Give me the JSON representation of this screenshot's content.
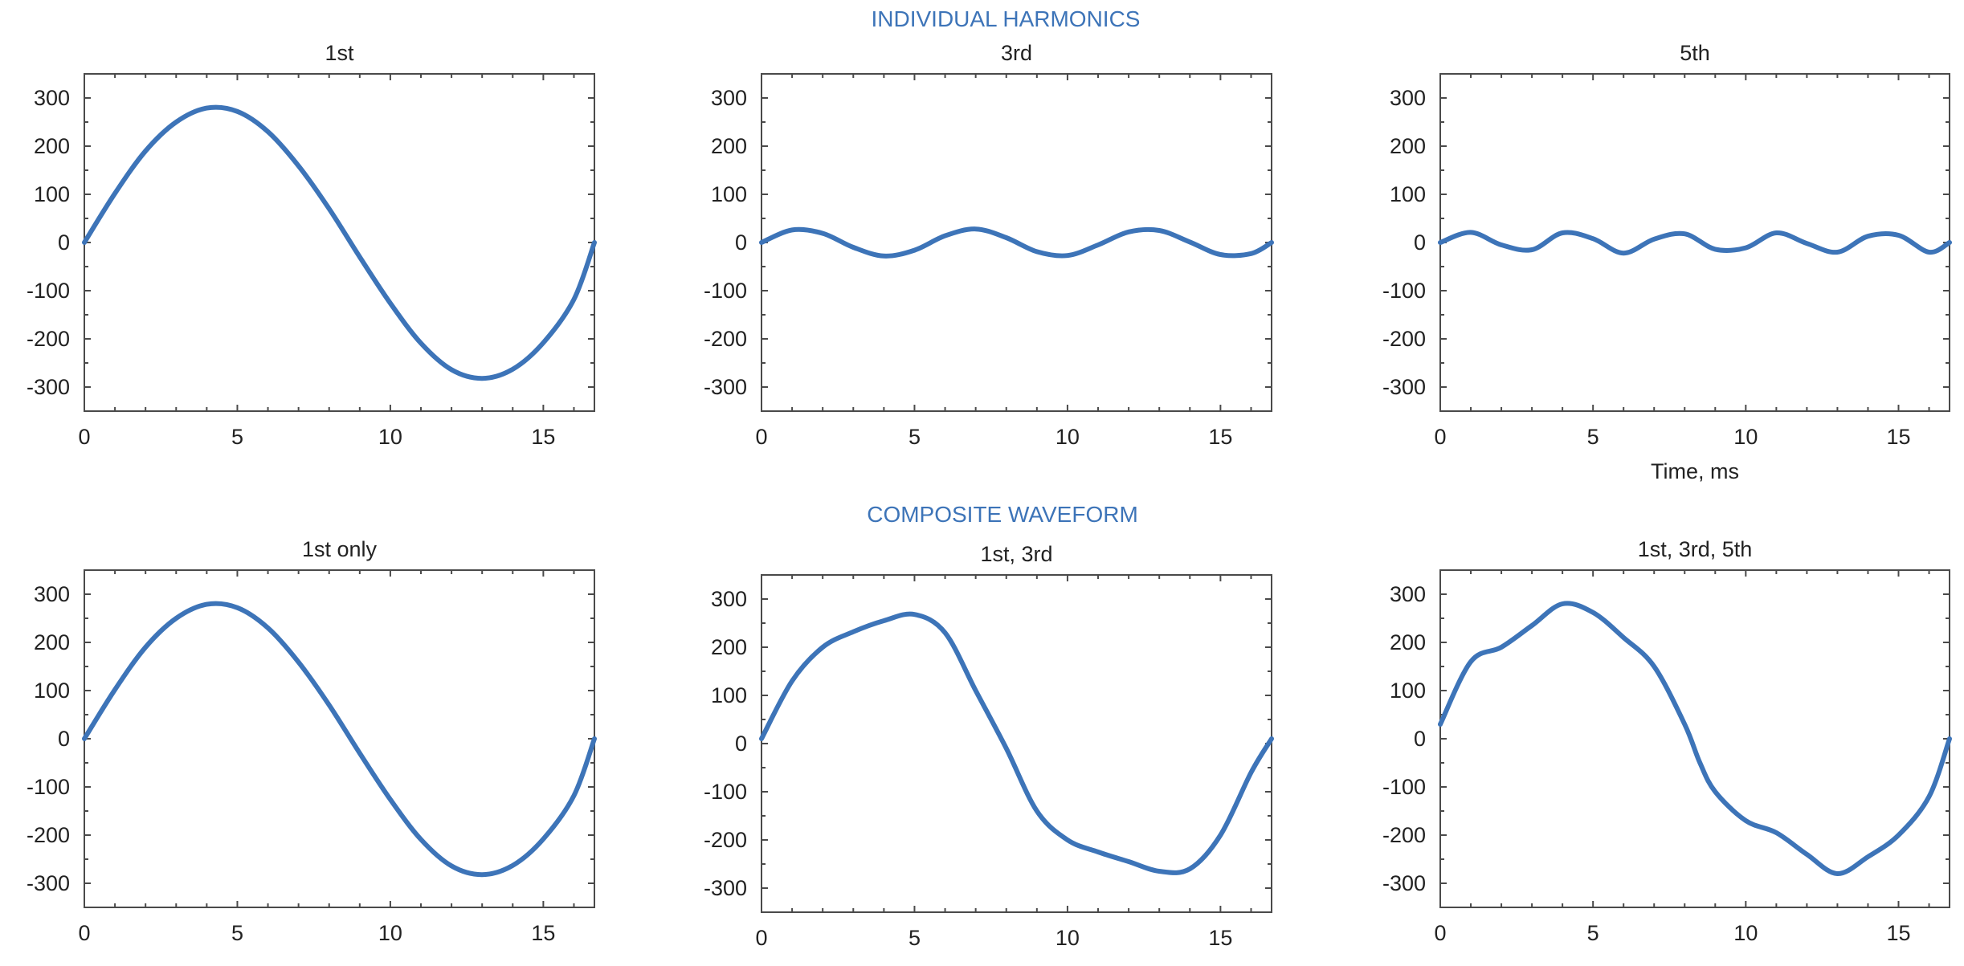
{
  "figure": {
    "top_title": "INDIVIDUAL HARMONICS",
    "bottom_title": "COMPOSITE WAVEFORM"
  },
  "colors": {
    "series": "#3d74b8",
    "section_title": "#3d74b8",
    "frame": "#4a4a4a",
    "text": "#222222"
  },
  "chart_data": [
    {
      "type": "line",
      "title": "1st",
      "xlabel": "",
      "ylabel": "",
      "xlim": [
        0,
        16.67
      ],
      "ylim": [
        -350,
        350
      ],
      "xticks": [
        0,
        5,
        10,
        15
      ],
      "yticks": [
        300,
        200,
        100,
        0,
        -100,
        -200,
        -300
      ],
      "grid": false,
      "legend": "none",
      "series": [
        {
          "x": [
            0,
            1,
            2,
            3,
            4,
            5,
            6,
            7,
            8,
            9,
            10,
            11,
            12,
            13,
            14,
            15,
            16,
            16.67
          ],
          "values": [
            0,
            102,
            190,
            250,
            279,
            272,
            230,
            159,
            70,
            -30,
            -126,
            -209,
            -264,
            -282,
            -263,
            -208,
            -118,
            0
          ]
        }
      ]
    },
    {
      "type": "line",
      "title": "3rd",
      "xlabel": "",
      "ylabel": "",
      "xlim": [
        0,
        16.67
      ],
      "ylim": [
        -350,
        350
      ],
      "xticks": [
        0,
        5,
        10,
        15
      ],
      "yticks": [
        300,
        200,
        100,
        0,
        -100,
        -200,
        -300
      ],
      "grid": false,
      "legend": "none",
      "series": [
        {
          "x": [
            0,
            1,
            2,
            3,
            4,
            5,
            6,
            7,
            8,
            9,
            10,
            11,
            12,
            13,
            14,
            15,
            16,
            16.67
          ],
          "values": [
            0,
            26,
            19,
            -10,
            -28,
            -16,
            14,
            28,
            10,
            -19,
            -27,
            -5,
            22,
            25,
            1,
            -25,
            -23,
            0
          ]
        }
      ]
    },
    {
      "type": "line",
      "title": "5th",
      "xlabel": "Time, ms",
      "ylabel": "",
      "xlim": [
        0,
        16.67
      ],
      "ylim": [
        -350,
        350
      ],
      "xticks": [
        0,
        5,
        10,
        15
      ],
      "yticks": [
        300,
        200,
        100,
        0,
        -100,
        -200,
        -300
      ],
      "grid": false,
      "legend": "none",
      "series": [
        {
          "x": [
            0,
            1,
            2,
            3,
            4,
            5,
            6,
            7,
            8,
            9,
            10,
            11,
            12,
            13,
            14,
            15,
            16,
            16.67
          ],
          "values": [
            0,
            21,
            -5,
            -15,
            20,
            8,
            -22,
            7,
            18,
            -14,
            -11,
            20,
            -2,
            -20,
            13,
            15,
            -20,
            0
          ]
        }
      ]
    },
    {
      "type": "line",
      "title": "1st only",
      "xlabel": "",
      "ylabel": "",
      "xlim": [
        0,
        16.67
      ],
      "ylim": [
        -350,
        350
      ],
      "xticks": [
        0,
        5,
        10,
        15
      ],
      "yticks": [
        300,
        200,
        100,
        0,
        -100,
        -200,
        -300
      ],
      "grid": false,
      "legend": "none",
      "series": [
        {
          "x": [
            0,
            1,
            2,
            3,
            4,
            5,
            6,
            7,
            8,
            9,
            10,
            11,
            12,
            13,
            14,
            15,
            16,
            16.67
          ],
          "values": [
            0,
            102,
            190,
            250,
            279,
            272,
            230,
            159,
            70,
            -30,
            -126,
            -209,
            -264,
            -282,
            -263,
            -208,
            -118,
            0
          ]
        }
      ]
    },
    {
      "type": "line",
      "title": "1st, 3rd",
      "xlabel": "",
      "ylabel": "",
      "xlim": [
        0,
        16.67
      ],
      "ylim": [
        -350,
        350
      ],
      "xticks": [
        0,
        5,
        10,
        15
      ],
      "yticks": [
        300,
        200,
        100,
        0,
        -100,
        -200,
        -300
      ],
      "grid": false,
      "legend": "none",
      "series": [
        {
          "x": [
            0,
            1,
            2,
            3,
            4,
            5,
            6,
            7,
            8,
            9,
            10,
            11,
            12,
            13,
            14,
            15,
            16,
            16.67
          ],
          "values": [
            10,
            130,
            200,
            232,
            255,
            268,
            230,
            110,
            -10,
            -140,
            -200,
            -225,
            -245,
            -265,
            -260,
            -190,
            -60,
            10
          ]
        }
      ]
    },
    {
      "type": "line",
      "title": "1st, 3rd, 5th",
      "xlabel": "",
      "ylabel": "",
      "xlim": [
        0,
        16.67
      ],
      "ylim": [
        -350,
        350
      ],
      "xticks": [
        0,
        5,
        10,
        15
      ],
      "yticks": [
        300,
        200,
        100,
        0,
        -100,
        -200,
        -300
      ],
      "grid": false,
      "legend": "none",
      "series": [
        {
          "x": [
            0,
            1,
            2,
            3,
            4,
            5,
            6,
            7,
            8,
            8.5,
            9,
            10,
            11,
            12,
            13,
            14,
            15,
            16,
            16.67
          ],
          "values": [
            30,
            160,
            190,
            235,
            280,
            262,
            210,
            150,
            30,
            -50,
            -110,
            -170,
            -195,
            -240,
            -280,
            -245,
            -200,
            -120,
            0
          ]
        }
      ]
    }
  ]
}
